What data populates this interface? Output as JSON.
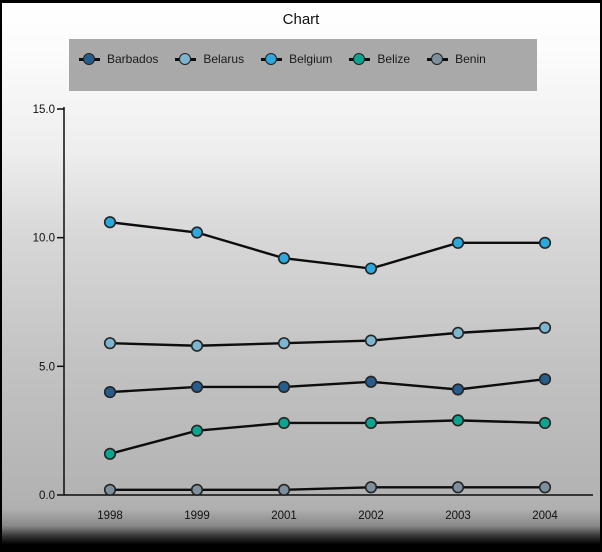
{
  "window": {
    "title": "Chart"
  },
  "legend": {
    "background": "#a9a9a9"
  },
  "chart_data": {
    "type": "line",
    "title": "Chart",
    "xlabel": "",
    "ylabel": "",
    "x_categories": [
      "1998",
      "1999",
      "2001",
      "2002",
      "2003",
      "2004"
    ],
    "y_tick_labels": [
      "0.0",
      "5.0",
      "10.0",
      "15.0"
    ],
    "y_tick_values": [
      0,
      5,
      10,
      15
    ],
    "ylim": [
      0,
      15
    ],
    "grid": false,
    "legend_position": "top",
    "series": [
      {
        "name": "Barbados",
        "color": "#275d8d",
        "values": [
          4.0,
          4.2,
          4.2,
          4.4,
          4.1,
          4.5
        ]
      },
      {
        "name": "Belarus",
        "color": "#7db4d0",
        "values": [
          5.9,
          5.8,
          5.9,
          6.0,
          6.3,
          6.5
        ]
      },
      {
        "name": "Belgium",
        "color": "#2da7dc",
        "values": [
          10.6,
          10.2,
          9.2,
          8.8,
          9.8,
          9.8
        ]
      },
      {
        "name": "Belize",
        "color": "#0ca48e",
        "values": [
          1.6,
          2.5,
          2.8,
          2.8,
          2.9,
          2.8
        ]
      },
      {
        "name": "Benin",
        "color": "#7e909d",
        "values": [
          0.2,
          0.2,
          0.2,
          0.3,
          0.3,
          0.3
        ]
      }
    ]
  }
}
